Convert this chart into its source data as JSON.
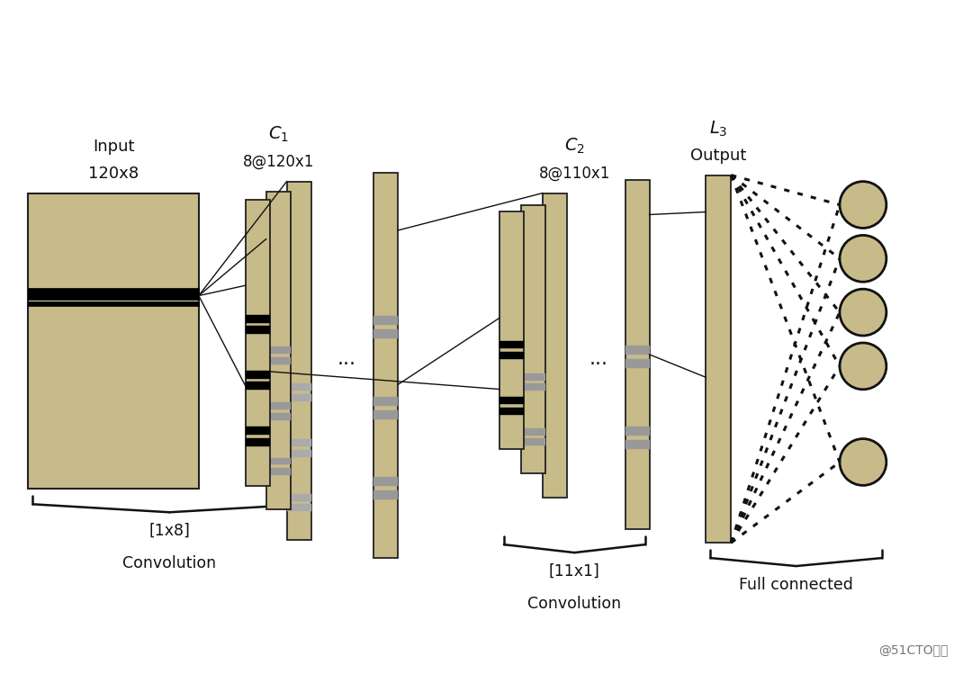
{
  "bg_color": "#ffffff",
  "box_color": "#c8bb8a",
  "box_edge_color": "#222222",
  "circle_color": "#c8bb8a",
  "circle_edge_color": "#111111",
  "line_color": "#111111",
  "text_color": "#111111",
  "watermark": "@51CTO博客",
  "input_label1": "Input",
  "input_label2": "120x8",
  "c1_label1": "$C_1$",
  "c1_label2": "8@120x1",
  "c2_label1": "$C_2$",
  "c2_label2": "8@110x1",
  "l3_label1": "$L_3$",
  "l3_label2": "Output",
  "brace1_label1": "[1x8]",
  "brace1_label2": "Convolution",
  "brace2_label1": "[11x1]",
  "brace2_label2": "Convolution",
  "brace3_label": "Full connected"
}
